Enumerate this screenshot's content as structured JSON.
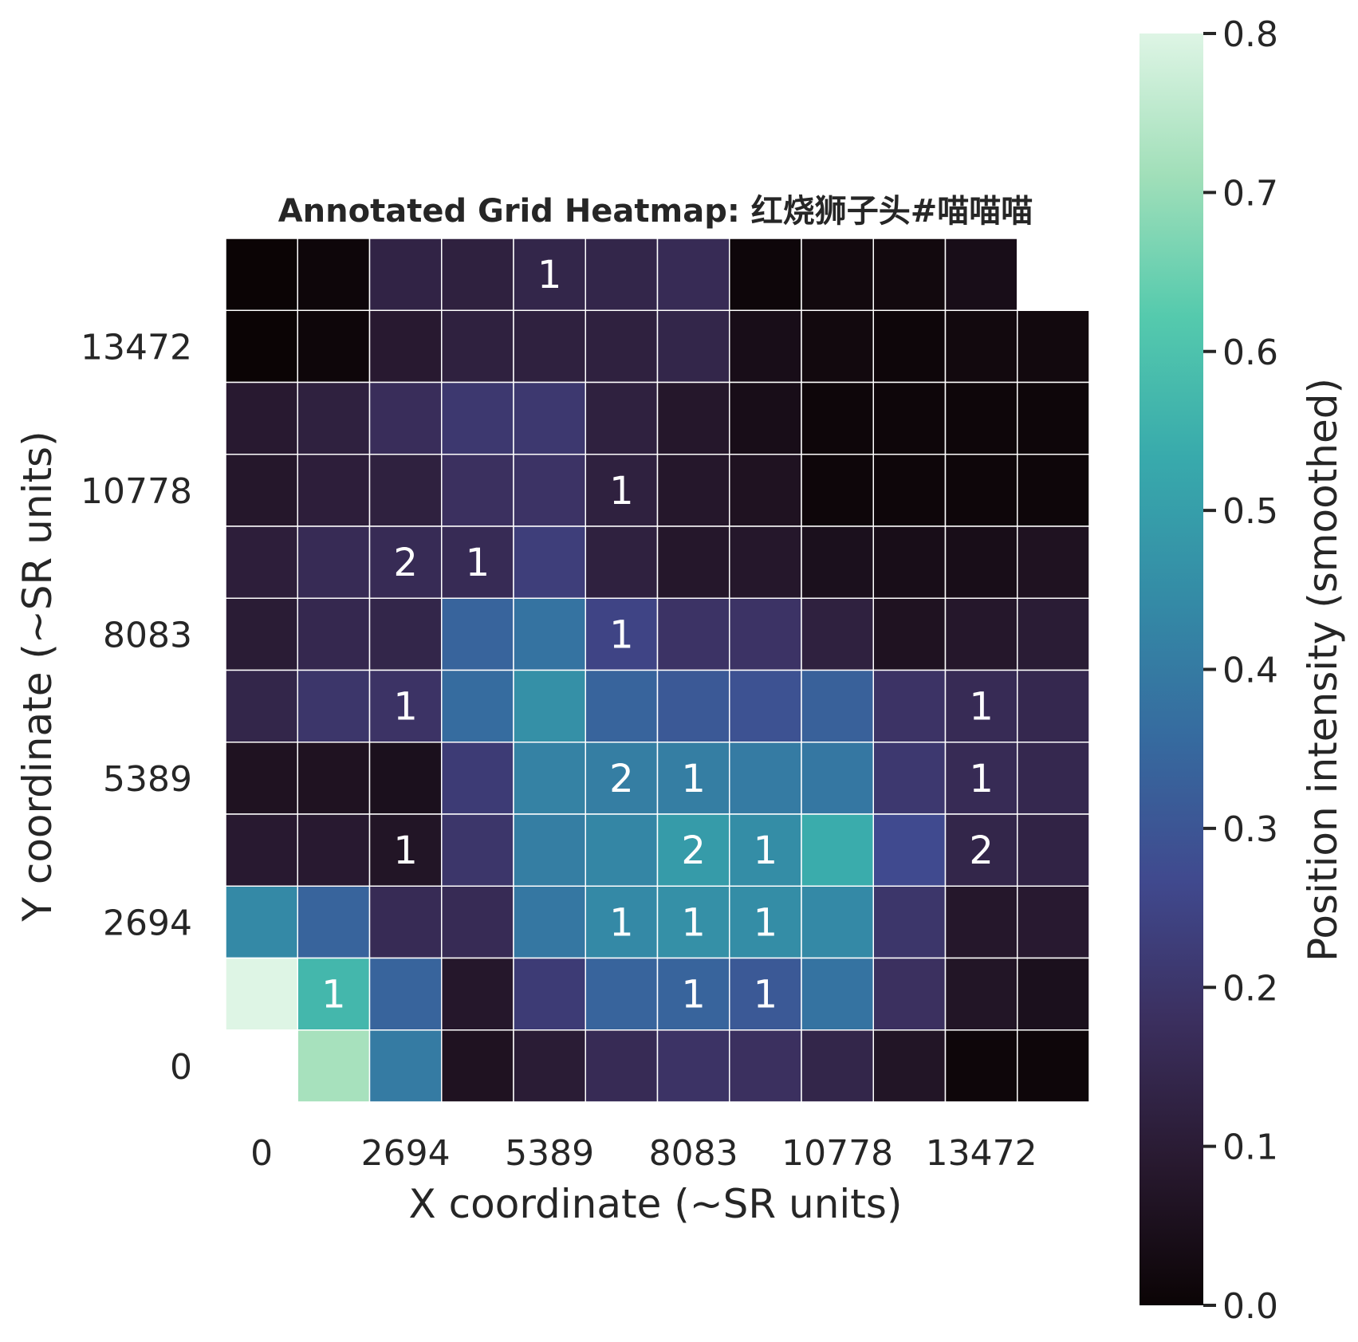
{
  "chart_data": {
    "type": "heatmap",
    "title": "Annotated Grid Heatmap: 红烧狮子头#喵喵喵",
    "xlabel": "X coordinate (~SR units)",
    "ylabel": "Y coordinate (~SR units)",
    "x_tick_labels": [
      "0",
      "2694",
      "5389",
      "8083",
      "10778",
      "13472"
    ],
    "y_tick_labels": [
      "0",
      "2694",
      "5389",
      "8083",
      "10778",
      "13472"
    ],
    "colorbar": {
      "label": "Position intensity (smoothed)",
      "range": [
        0.0,
        0.8
      ],
      "ticks": [
        "0.0",
        "0.1",
        "0.2",
        "0.3",
        "0.4",
        "0.5",
        "0.6",
        "0.7",
        "0.8"
      ],
      "colormap": "mako",
      "colors": [
        "#0b0405",
        "#28192f",
        "#3b2f5e",
        "#40498e",
        "#366a9f",
        "#348ba6",
        "#38aaac",
        "#55caad",
        "#a1dfb9",
        "#def5e5"
      ]
    },
    "grid_color": "#ffffff",
    "n_rows": 12,
    "n_cols": 12,
    "rows_top_to_bottom": [
      [
        0.0,
        0.01,
        0.13,
        0.12,
        0.14,
        0.14,
        0.16,
        0.01,
        0.02,
        0.02,
        0.04,
        null
      ],
      [
        0.0,
        0.01,
        0.09,
        0.12,
        0.12,
        0.12,
        0.14,
        0.04,
        0.02,
        0.01,
        0.02,
        0.02
      ],
      [
        0.09,
        0.12,
        0.17,
        0.21,
        0.21,
        0.12,
        0.08,
        0.04,
        0.01,
        0.01,
        0.01,
        0.01
      ],
      [
        0.08,
        0.11,
        0.12,
        0.18,
        0.19,
        0.12,
        0.08,
        0.06,
        0.01,
        0.01,
        0.01,
        0.01
      ],
      [
        0.11,
        0.16,
        0.16,
        0.16,
        0.23,
        0.12,
        0.08,
        0.08,
        0.05,
        0.04,
        0.04,
        0.06
      ],
      [
        0.1,
        0.15,
        0.14,
        0.34,
        0.38,
        0.25,
        0.19,
        0.19,
        0.12,
        0.06,
        0.08,
        0.1
      ],
      [
        0.14,
        0.2,
        0.19,
        0.36,
        0.46,
        0.34,
        0.31,
        0.29,
        0.33,
        0.19,
        0.16,
        0.15
      ],
      [
        0.06,
        0.06,
        0.05,
        0.22,
        0.42,
        0.41,
        0.41,
        0.4,
        0.39,
        0.21,
        0.16,
        0.15
      ],
      [
        0.09,
        0.09,
        0.07,
        0.2,
        0.41,
        0.43,
        0.49,
        0.45,
        0.54,
        0.27,
        0.14,
        0.13
      ],
      [
        0.44,
        0.34,
        0.16,
        0.16,
        0.39,
        0.44,
        0.46,
        0.45,
        0.44,
        0.2,
        0.08,
        0.09
      ],
      [
        0.8,
        0.57,
        0.34,
        0.08,
        0.22,
        0.34,
        0.34,
        0.31,
        0.38,
        0.18,
        0.07,
        0.05
      ],
      [
        null,
        0.72,
        0.4,
        0.06,
        0.1,
        0.16,
        0.19,
        0.18,
        0.14,
        0.07,
        0.01,
        0.01
      ]
    ],
    "annotations": [
      {
        "row": 0,
        "col": 4,
        "text": "1"
      },
      {
        "row": 3,
        "col": 5,
        "text": "1"
      },
      {
        "row": 4,
        "col": 2,
        "text": "2"
      },
      {
        "row": 4,
        "col": 3,
        "text": "1"
      },
      {
        "row": 5,
        "col": 5,
        "text": "1"
      },
      {
        "row": 6,
        "col": 2,
        "text": "1"
      },
      {
        "row": 6,
        "col": 10,
        "text": "1"
      },
      {
        "row": 7,
        "col": 5,
        "text": "2"
      },
      {
        "row": 7,
        "col": 6,
        "text": "1"
      },
      {
        "row": 7,
        "col": 10,
        "text": "1"
      },
      {
        "row": 8,
        "col": 2,
        "text": "1"
      },
      {
        "row": 8,
        "col": 6,
        "text": "2"
      },
      {
        "row": 8,
        "col": 7,
        "text": "1"
      },
      {
        "row": 8,
        "col": 10,
        "text": "2"
      },
      {
        "row": 9,
        "col": 5,
        "text": "1"
      },
      {
        "row": 9,
        "col": 6,
        "text": "1"
      },
      {
        "row": 9,
        "col": 7,
        "text": "1"
      },
      {
        "row": 10,
        "col": 1,
        "text": "1"
      },
      {
        "row": 10,
        "col": 6,
        "text": "1"
      },
      {
        "row": 10,
        "col": 7,
        "text": "1"
      }
    ]
  }
}
